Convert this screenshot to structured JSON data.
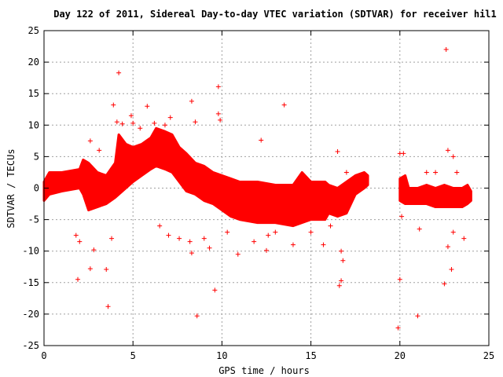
{
  "chart_data": {
    "type": "scatter",
    "title": "Day 122 of 2011, Sidereal Day-to-day VTEC variation (SDTVAR) for receiver hil1",
    "xlabel": "GPS time / hours",
    "ylabel": "SDTVAR / TECUs",
    "xlim": [
      0,
      25
    ],
    "ylim": [
      -25,
      25
    ],
    "xticks": [
      "0",
      "5",
      "10",
      "15",
      "20",
      "25"
    ],
    "yticks": [
      "25",
      "20",
      "15",
      "10",
      "5",
      "0",
      "-5",
      "-10",
      "-15",
      "-20",
      "-25"
    ],
    "grid": true,
    "marker": "+",
    "color": "#ff0000",
    "band": [
      {
        "x": 0.0,
        "lo": -2.0,
        "hi": 1.0
      },
      {
        "x": 0.3,
        "lo": -1.0,
        "hi": 2.5
      },
      {
        "x": 1.0,
        "lo": -0.5,
        "hi": 2.5
      },
      {
        "x": 2.0,
        "lo": 0.0,
        "hi": 3.0
      },
      {
        "x": 2.2,
        "lo": -1.0,
        "hi": 4.5
      },
      {
        "x": 2.5,
        "lo": -3.5,
        "hi": 4.0
      },
      {
        "x": 3.0,
        "lo": -3.0,
        "hi": 2.5
      },
      {
        "x": 3.5,
        "lo": -2.5,
        "hi": 2.0
      },
      {
        "x": 4.0,
        "lo": -1.5,
        "hi": 4.0
      },
      {
        "x": 4.2,
        "lo": -1.0,
        "hi": 8.5
      },
      {
        "x": 4.6,
        "lo": 0.0,
        "hi": 7.0
      },
      {
        "x": 5.0,
        "lo": 1.0,
        "hi": 6.5
      },
      {
        "x": 5.5,
        "lo": 2.0,
        "hi": 7.0
      },
      {
        "x": 6.0,
        "lo": 3.0,
        "hi": 8.0
      },
      {
        "x": 6.3,
        "lo": 3.5,
        "hi": 9.5
      },
      {
        "x": 6.8,
        "lo": 3.0,
        "hi": 9.0
      },
      {
        "x": 7.2,
        "lo": 2.5,
        "hi": 8.5
      },
      {
        "x": 7.6,
        "lo": 1.0,
        "hi": 6.5
      },
      {
        "x": 8.0,
        "lo": -0.5,
        "hi": 5.5
      },
      {
        "x": 8.5,
        "lo": -1.0,
        "hi": 4.0
      },
      {
        "x": 9.0,
        "lo": -2.0,
        "hi": 3.5
      },
      {
        "x": 9.5,
        "lo": -2.5,
        "hi": 2.5
      },
      {
        "x": 10.0,
        "lo": -3.5,
        "hi": 2.0
      },
      {
        "x": 10.5,
        "lo": -4.5,
        "hi": 1.5
      },
      {
        "x": 11.0,
        "lo": -5.0,
        "hi": 1.0
      },
      {
        "x": 12.0,
        "lo": -5.5,
        "hi": 1.0
      },
      {
        "x": 13.0,
        "lo": -5.5,
        "hi": 0.5
      },
      {
        "x": 14.0,
        "lo": -6.0,
        "hi": 0.5
      },
      {
        "x": 14.5,
        "lo": -5.5,
        "hi": 2.5
      },
      {
        "x": 15.0,
        "lo": -5.0,
        "hi": 1.0
      },
      {
        "x": 15.8,
        "lo": -5.0,
        "hi": 1.0
      },
      {
        "x": 16.0,
        "lo": -4.0,
        "hi": 0.5
      },
      {
        "x": 16.5,
        "lo": -4.5,
        "hi": 0.0
      },
      {
        "x": 17.0,
        "lo": -4.0,
        "hi": 1.0
      },
      {
        "x": 17.5,
        "lo": -1.0,
        "hi": 2.0
      },
      {
        "x": 18.0,
        "lo": 0.0,
        "hi": 2.5
      },
      {
        "x": 18.2,
        "lo": 0.5,
        "hi": 2.0
      }
    ],
    "band2": [
      {
        "x": 20.0,
        "lo": -2.0,
        "hi": 1.5
      },
      {
        "x": 20.3,
        "lo": -2.5,
        "hi": 2.0
      },
      {
        "x": 20.5,
        "lo": -2.5,
        "hi": 0.0
      },
      {
        "x": 21.0,
        "lo": -2.5,
        "hi": 0.0
      },
      {
        "x": 21.5,
        "lo": -2.5,
        "hi": 0.5
      },
      {
        "x": 22.0,
        "lo": -3.0,
        "hi": 0.0
      },
      {
        "x": 22.5,
        "lo": -3.0,
        "hi": 0.5
      },
      {
        "x": 23.0,
        "lo": -3.0,
        "hi": 0.0
      },
      {
        "x": 23.5,
        "lo": -3.0,
        "hi": 0.0
      },
      {
        "x": 23.8,
        "lo": -2.5,
        "hi": 0.5
      },
      {
        "x": 24.0,
        "lo": -2.0,
        "hi": -0.5
      }
    ],
    "outliers": [
      [
        1.9,
        -14.5
      ],
      [
        1.8,
        -7.5
      ],
      [
        2.0,
        -8.5
      ],
      [
        2.6,
        -12.8
      ],
      [
        2.8,
        -9.8
      ],
      [
        3.5,
        -12.9
      ],
      [
        3.6,
        -18.8
      ],
      [
        3.8,
        -8.0
      ],
      [
        2.6,
        7.5
      ],
      [
        3.1,
        6.0
      ],
      [
        3.9,
        13.2
      ],
      [
        4.1,
        10.5
      ],
      [
        4.2,
        18.3
      ],
      [
        4.4,
        10.2
      ],
      [
        4.9,
        11.5
      ],
      [
        5.0,
        10.3
      ],
      [
        5.4,
        9.5
      ],
      [
        5.8,
        13.0
      ],
      [
        6.2,
        10.3
      ],
      [
        6.8,
        10.0
      ],
      [
        7.1,
        11.2
      ],
      [
        6.5,
        -6.0
      ],
      [
        7.0,
        -7.5
      ],
      [
        7.6,
        -8.0
      ],
      [
        8.2,
        -8.5
      ],
      [
        8.3,
        13.8
      ],
      [
        8.5,
        10.5
      ],
      [
        8.3,
        -10.3
      ],
      [
        8.6,
        -20.3
      ],
      [
        9.0,
        -8.0
      ],
      [
        9.3,
        -9.5
      ],
      [
        9.6,
        -16.2
      ],
      [
        9.8,
        16.1
      ],
      [
        9.8,
        11.8
      ],
      [
        9.9,
        10.8
      ],
      [
        10.3,
        -7.0
      ],
      [
        10.9,
        -10.5
      ],
      [
        11.8,
        -8.5
      ],
      [
        12.2,
        7.6
      ],
      [
        12.5,
        -9.9
      ],
      [
        12.6,
        -7.5
      ],
      [
        13.5,
        13.2
      ],
      [
        13.0,
        -7.0
      ],
      [
        14.0,
        -9.0
      ],
      [
        15.0,
        -7.0
      ],
      [
        15.7,
        -9.0
      ],
      [
        16.1,
        -6.0
      ],
      [
        16.5,
        5.8
      ],
      [
        16.6,
        -15.5
      ],
      [
        16.7,
        -14.7
      ],
      [
        16.8,
        -11.5
      ],
      [
        16.7,
        -10.0
      ],
      [
        17.0,
        2.5
      ],
      [
        19.9,
        -22.2
      ],
      [
        20.0,
        -14.5
      ],
      [
        20.0,
        5.5
      ],
      [
        20.2,
        5.5
      ],
      [
        20.1,
        -4.5
      ],
      [
        21.0,
        -20.3
      ],
      [
        21.1,
        -6.5
      ],
      [
        21.5,
        2.5
      ],
      [
        22.0,
        2.5
      ],
      [
        22.5,
        -15.2
      ],
      [
        22.6,
        22.0
      ],
      [
        22.7,
        -9.3
      ],
      [
        22.9,
        -12.9
      ],
      [
        22.7,
        6.0
      ],
      [
        23.0,
        5.0
      ],
      [
        23.2,
        2.5
      ],
      [
        23.0,
        -7.0
      ],
      [
        23.6,
        -8.0
      ]
    ]
  }
}
